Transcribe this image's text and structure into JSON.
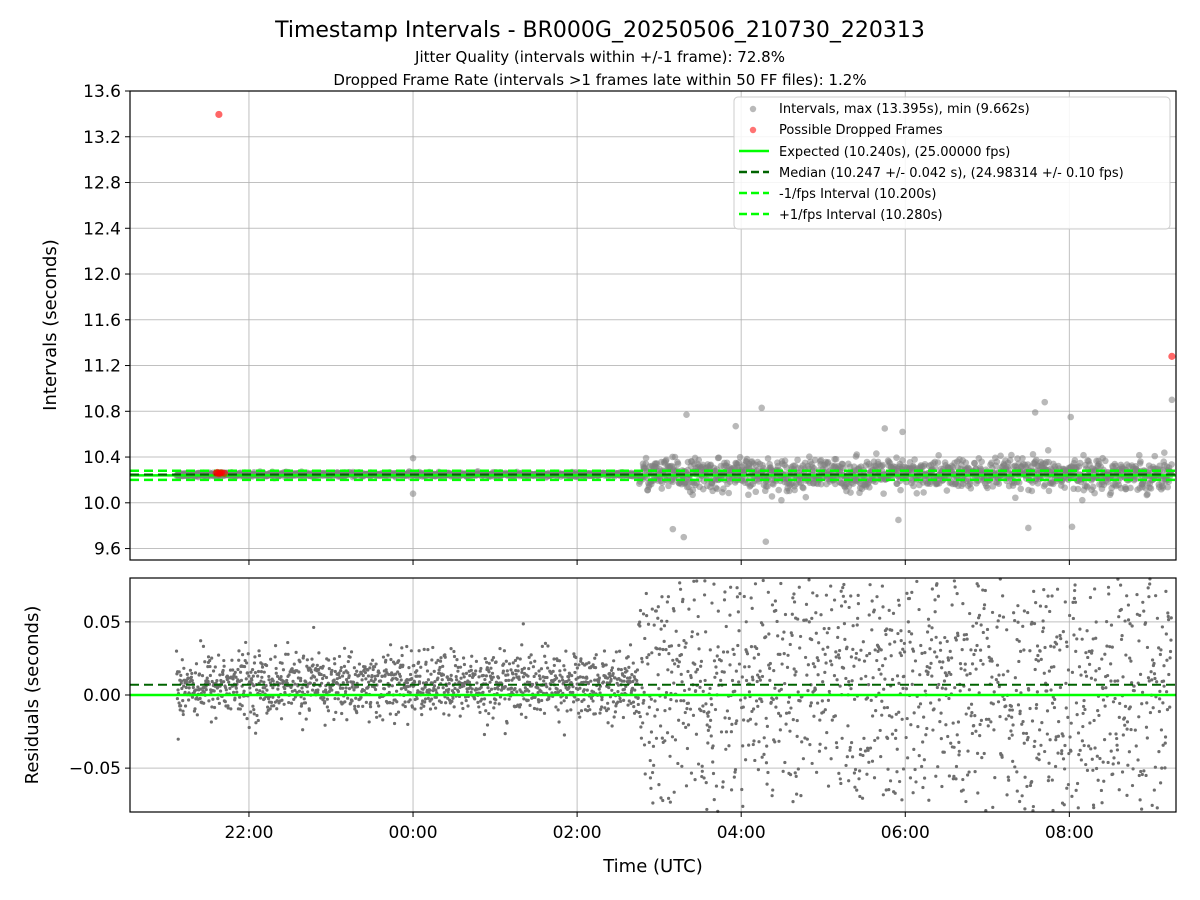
{
  "title": "Timestamp Intervals - BR000G_20250506_210730_220313",
  "subtitle_1": "Jitter Quality (intervals within +/-1 frame): 72.8%",
  "subtitle_2": "Dropped Frame Rate (intervals >1 frames late within 50 FF files): 1.2%",
  "colors": {
    "intervals": "#808080",
    "dropped": "#ff0000",
    "expected": "#00ff00",
    "median": "#006400",
    "fps_band": "#00ff00",
    "grid": "#b0b0b0"
  },
  "chart_data": [
    {
      "type": "scatter",
      "xlabel": "",
      "ylabel": "Intervals (seconds)",
      "x_range_utc_hours": [
        20.55,
        33.3
      ],
      "ylim": [
        9.5,
        13.6
      ],
      "yticks": [
        "9.6",
        "10.0",
        "10.4",
        "10.8",
        "11.2",
        "11.6",
        "12.0",
        "12.4",
        "12.8",
        "13.2",
        "13.6"
      ],
      "xticks": [
        "22:00",
        "00:00",
        "02:00",
        "04:00",
        "06:00",
        "08:00"
      ],
      "grid": true,
      "legend_position": "top-right",
      "legend": [
        "Intervals, max (13.395s), min (9.662s)",
        "Possible Dropped Frames",
        "Expected (10.240s), (25.00000 fps)",
        "Median (10.247 +/- 0.042 s), (24.98314 +/- 0.10 fps)",
        "-1/fps Interval (10.200s)",
        "+1/fps Interval (10.280s)"
      ],
      "series": [
        {
          "name": "Intervals",
          "description_stats": {
            "max": 13.395,
            "min": 9.662
          },
          "time_span": [
            "21:07",
            "09:15"
          ],
          "phases": [
            {
              "from": "21:07",
              "to": "02:45",
              "center": 10.247,
              "spread": 0.02
            },
            {
              "from": "02:45",
              "to": "09:15",
              "center": 10.247,
              "spread": 0.09
            }
          ]
        },
        {
          "name": "Possible Dropped Frames",
          "points": [
            {
              "time": "21:38",
              "y": 13.395
            },
            {
              "time": "21:36",
              "y": 10.26
            },
            {
              "time": "21:37",
              "y": 10.265
            },
            {
              "time": "21:38",
              "y": 10.255
            },
            {
              "time": "21:39",
              "y": 10.26
            },
            {
              "time": "21:40",
              "y": 10.262
            },
            {
              "time": "21:42",
              "y": 10.258
            },
            {
              "time": "09:15",
              "y": 11.28
            }
          ]
        },
        {
          "name": "Expected",
          "y": 10.24
        },
        {
          "name": "Median",
          "y": 10.247
        },
        {
          "name": "-1/fps Interval",
          "y": 10.2
        },
        {
          "name": "+1/fps Interval",
          "y": 10.28
        }
      ],
      "outliers": [
        {
          "time": "00:00",
          "y": 10.39
        },
        {
          "time": "00:00",
          "y": 10.08
        },
        {
          "time": "03:10",
          "y": 9.77
        },
        {
          "time": "03:18",
          "y": 9.7
        },
        {
          "time": "03:20",
          "y": 10.77
        },
        {
          "time": "03:56",
          "y": 10.67
        },
        {
          "time": "04:15",
          "y": 10.83
        },
        {
          "time": "04:18",
          "y": 9.66
        },
        {
          "time": "05:45",
          "y": 10.65
        },
        {
          "time": "05:58",
          "y": 10.62
        },
        {
          "time": "07:35",
          "y": 10.79
        },
        {
          "time": "07:42",
          "y": 10.88
        },
        {
          "time": "08:01",
          "y": 10.75
        },
        {
          "time": "08:02",
          "y": 9.79
        },
        {
          "time": "09:15",
          "y": 10.9
        },
        {
          "time": "05:55",
          "y": 9.85
        },
        {
          "time": "07:30",
          "y": 9.78
        }
      ]
    },
    {
      "type": "scatter",
      "xlabel": "Time (UTC)",
      "ylabel": "Residuals (seconds)",
      "x_range_utc_hours": [
        20.55,
        33.3
      ],
      "ylim": [
        -0.08,
        0.08
      ],
      "yticks": [
        "−0.05",
        "0.00",
        "0.05"
      ],
      "xticks": [
        "22:00",
        "00:00",
        "02:00",
        "04:00",
        "06:00",
        "08:00"
      ],
      "grid": true,
      "series": [
        {
          "name": "Residuals",
          "phases": [
            {
              "from": "21:07",
              "to": "02:45",
              "center": 0.007,
              "spread": 0.02
            },
            {
              "from": "02:45",
              "to": "09:15",
              "center": 0.007,
              "spread": 0.09
            }
          ]
        },
        {
          "name": "Expected",
          "y": 0.0
        },
        {
          "name": "Median",
          "y": 0.007
        }
      ]
    }
  ]
}
